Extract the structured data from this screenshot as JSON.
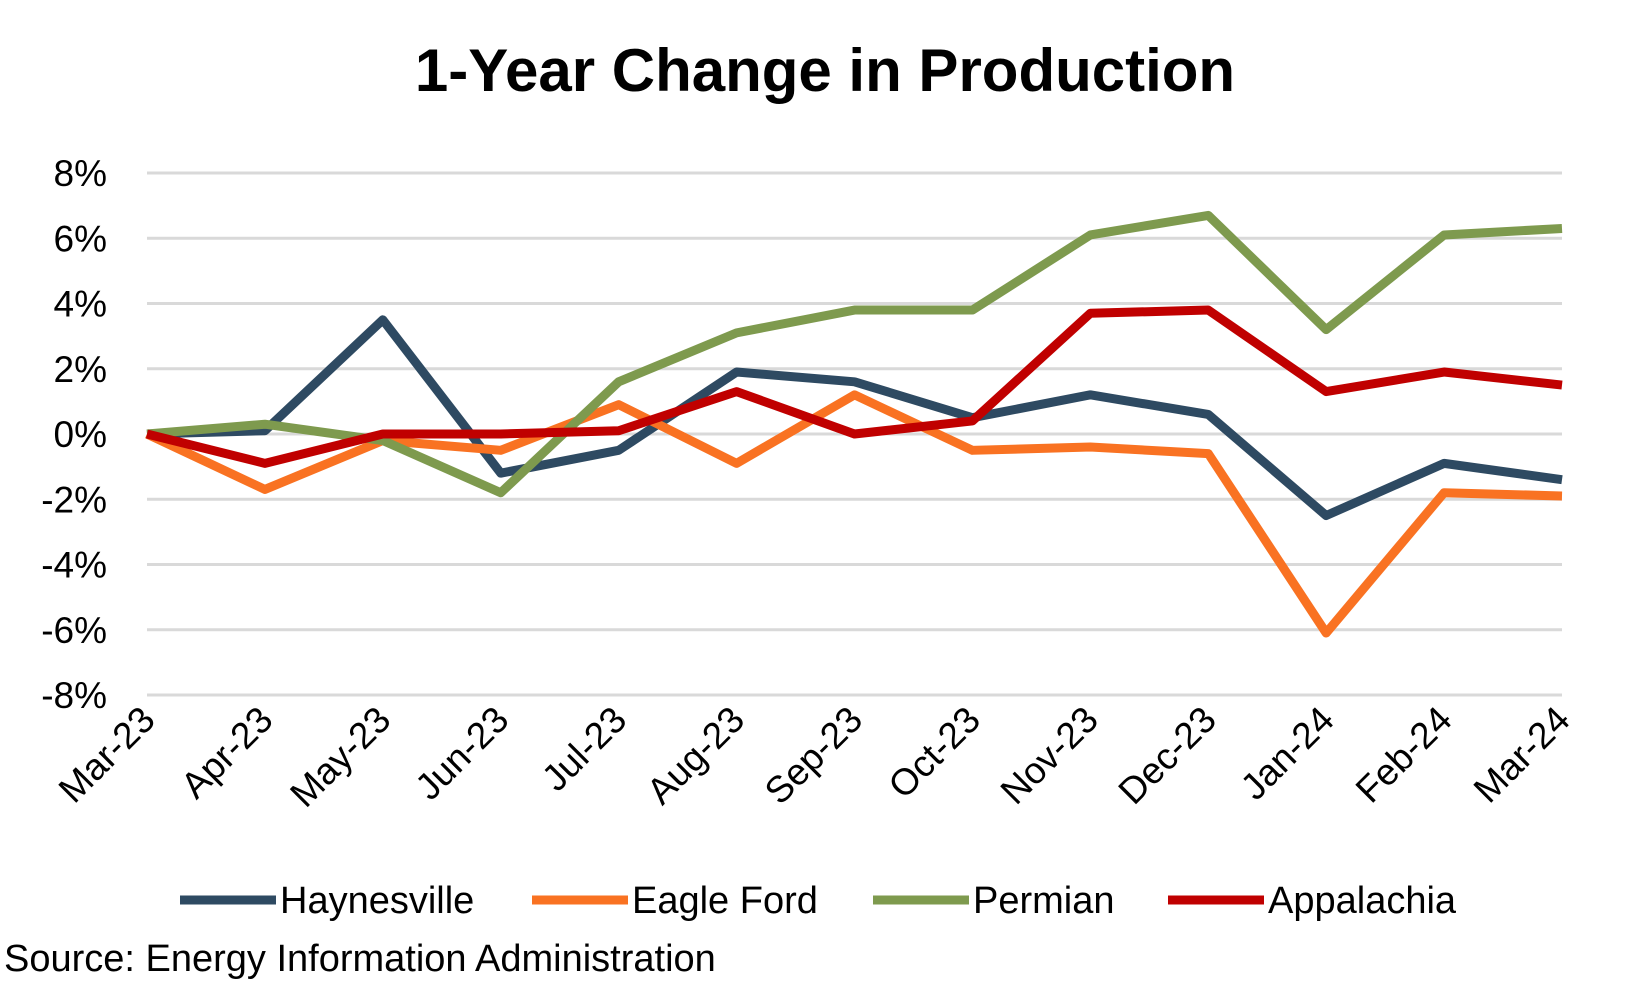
{
  "chart_data": {
    "type": "line",
    "title": "1-Year Change in Production",
    "xlabel": "",
    "ylabel": "",
    "categories": [
      "Mar-23",
      "Apr-23",
      "May-23",
      "Jun-23",
      "Jul-23",
      "Aug-23",
      "Sep-23",
      "Oct-23",
      "Nov-23",
      "Dec-23",
      "Jan-24",
      "Feb-24",
      "Mar-24"
    ],
    "yticks": [
      "8%",
      "6%",
      "4%",
      "2%",
      "0%",
      "-2%",
      "-4%",
      "-6%",
      "-8%"
    ],
    "ylim": [
      -8,
      8
    ],
    "grid": true,
    "legend": "bottom",
    "series": [
      {
        "name": "Haynesville",
        "color": "#2E4A62",
        "values": [
          0,
          0.1,
          3.5,
          -1.2,
          -0.5,
          1.9,
          1.6,
          0.5,
          1.2,
          0.6,
          -2.5,
          -0.9,
          -1.4
        ]
      },
      {
        "name": "Eagle Ford",
        "color": "#F97222",
        "values": [
          0,
          -1.7,
          -0.2,
          -0.5,
          0.9,
          -0.9,
          1.2,
          -0.5,
          -0.4,
          -0.6,
          -6.1,
          -1.8,
          -1.9
        ]
      },
      {
        "name": "Permian",
        "color": "#7E9A4E",
        "values": [
          0,
          0.3,
          -0.2,
          -1.8,
          1.6,
          3.1,
          3.8,
          3.8,
          6.1,
          6.7,
          3.2,
          6.1,
          6.3
        ]
      },
      {
        "name": "Appalachia",
        "color": "#C00000",
        "values": [
          0,
          -0.9,
          0,
          0,
          0.1,
          1.3,
          0,
          0.4,
          3.7,
          3.8,
          1.3,
          1.9,
          1.5
        ]
      }
    ]
  },
  "source": "Source: Energy Information Administration"
}
